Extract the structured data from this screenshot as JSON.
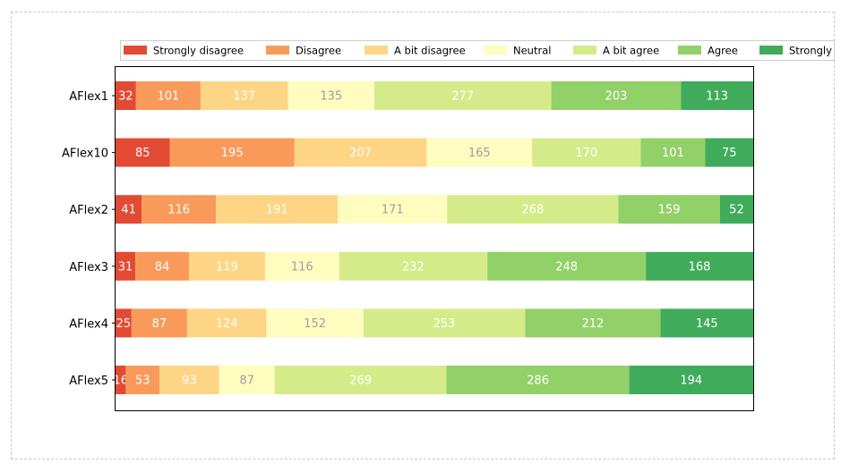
{
  "colors": [
    "#e34a33",
    "#f99a5a",
    "#fed585",
    "#fefcbf",
    "#d5eb8a",
    "#92d068",
    "#3fab5b"
  ],
  "label_colors": [
    "#ffffff",
    "#ffffff",
    "#ffffff",
    "#a0a0a0",
    "#ffffff",
    "#ffffff",
    "#ffffff"
  ],
  "chart_data": {
    "type": "bar",
    "orientation": "horizontal",
    "stacked": true,
    "categories": [
      "AFlex1",
      "AFlex10",
      "AFlex2",
      "AFlex3",
      "AFlex4",
      "AFlex5"
    ],
    "legend_labels": [
      "Strongly disagree",
      "Disagree",
      "A bit disagree",
      "Neutral",
      "A bit agree",
      "Agree",
      "Strongly"
    ],
    "series": [
      {
        "name": "Strongly disagree",
        "values": [
          32,
          85,
          41,
          31,
          25,
          16
        ]
      },
      {
        "name": "Disagree",
        "values": [
          101,
          195,
          116,
          84,
          87,
          53
        ]
      },
      {
        "name": "A bit disagree",
        "values": [
          137,
          207,
          191,
          119,
          124,
          93
        ]
      },
      {
        "name": "Neutral",
        "values": [
          135,
          165,
          171,
          116,
          152,
          87
        ]
      },
      {
        "name": "A bit agree",
        "values": [
          277,
          170,
          268,
          232,
          253,
          269
        ]
      },
      {
        "name": "Agree",
        "values": [
          203,
          101,
          159,
          248,
          212,
          286
        ]
      },
      {
        "name": "Strongly agree",
        "values": [
          113,
          75,
          52,
          168,
          145,
          194
        ]
      }
    ],
    "xlim": [
      0,
      998
    ],
    "legend_position": "top",
    "grid": false,
    "x_ticks_visible": false
  }
}
